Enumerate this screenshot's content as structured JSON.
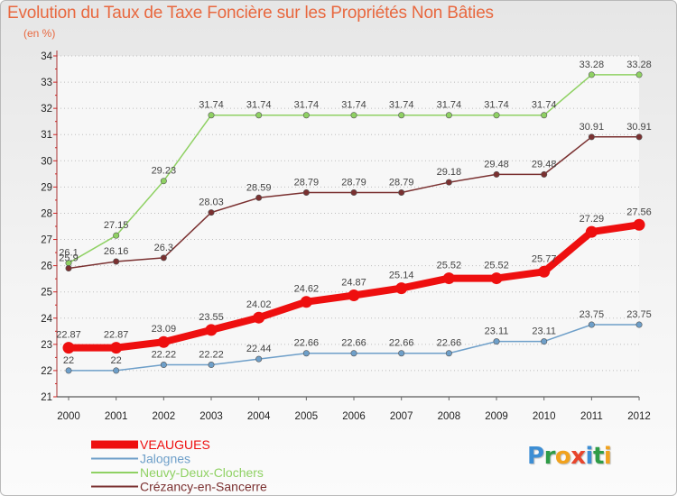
{
  "title": "Evolution du Taux de Taxe Foncière sur les Propriétés Non Bâties",
  "unit_label": "(en %)",
  "logo": {
    "letters": [
      "P",
      "r",
      "o",
      "x",
      "i",
      "t",
      "i"
    ],
    "colors": [
      "#3d8ed4",
      "#2f9c47",
      "#f1a21e",
      "#e8452c",
      "#3d8ed4",
      "#2f9c47",
      "#f1a21e"
    ]
  },
  "chart_data": {
    "type": "line",
    "x": [
      "2000",
      "2001",
      "2002",
      "2003",
      "2004",
      "2005",
      "2006",
      "2007",
      "2008",
      "2009",
      "2010",
      "2011",
      "2012"
    ],
    "ylim": [
      21,
      34
    ],
    "yticks": [
      21,
      22,
      23,
      24,
      25,
      26,
      27,
      28,
      29,
      30,
      31,
      32,
      33,
      34
    ],
    "grid": "horizontal dotted",
    "legend_position": "bottom-left",
    "series": [
      {
        "name": "VEAUGUES",
        "color": "#ee0f0f",
        "emphasis": true,
        "values": [
          22.87,
          22.87,
          23.09,
          23.55,
          24.02,
          24.62,
          24.87,
          25.14,
          25.52,
          25.52,
          25.77,
          27.29,
          27.56
        ],
        "labels": [
          "22.87",
          "22.87",
          "23.09",
          "23.55",
          "24.02",
          "24.62",
          "24.87",
          "25.14",
          "25.52",
          "25.52",
          "25.77",
          "27.29",
          "27.56"
        ]
      },
      {
        "name": "Jalognes",
        "color": "#6e9fc9",
        "emphasis": false,
        "values": [
          22,
          22,
          22.22,
          22.22,
          22.44,
          22.66,
          22.66,
          22.66,
          22.66,
          23.11,
          23.11,
          23.75,
          23.75
        ],
        "labels": [
          "22",
          "22",
          "22.22",
          "22.22",
          "22.44",
          "22.66",
          "22.66",
          "22.66",
          "22.66",
          "23.11",
          "23.11",
          "23.75",
          "23.75"
        ]
      },
      {
        "name": "Neuvy-Deux-Clochers",
        "color": "#8fd163",
        "emphasis": false,
        "values": [
          26.1,
          27.15,
          29.23,
          31.74,
          31.74,
          31.74,
          31.74,
          31.74,
          31.74,
          31.74,
          31.74,
          33.28,
          33.28
        ],
        "labels": [
          "26.1",
          "27.15",
          "29.23",
          "31.74",
          "31.74",
          "31.74",
          "31.74",
          "31.74",
          "31.74",
          "31.74",
          "31.74",
          "33.28",
          "33.28"
        ]
      },
      {
        "name": "Crézancy-en-Sancerre",
        "color": "#7a3030",
        "emphasis": false,
        "values": [
          25.9,
          26.16,
          26.3,
          28.03,
          28.59,
          28.79,
          28.79,
          28.79,
          29.18,
          29.48,
          29.48,
          30.91,
          30.91
        ],
        "labels": [
          "25.9",
          "26.16",
          "26.3",
          "28.03",
          "28.59",
          "28.79",
          "28.79",
          "28.79",
          "29.18",
          "29.48",
          "29.48",
          "30.91",
          "30.91"
        ]
      }
    ]
  }
}
